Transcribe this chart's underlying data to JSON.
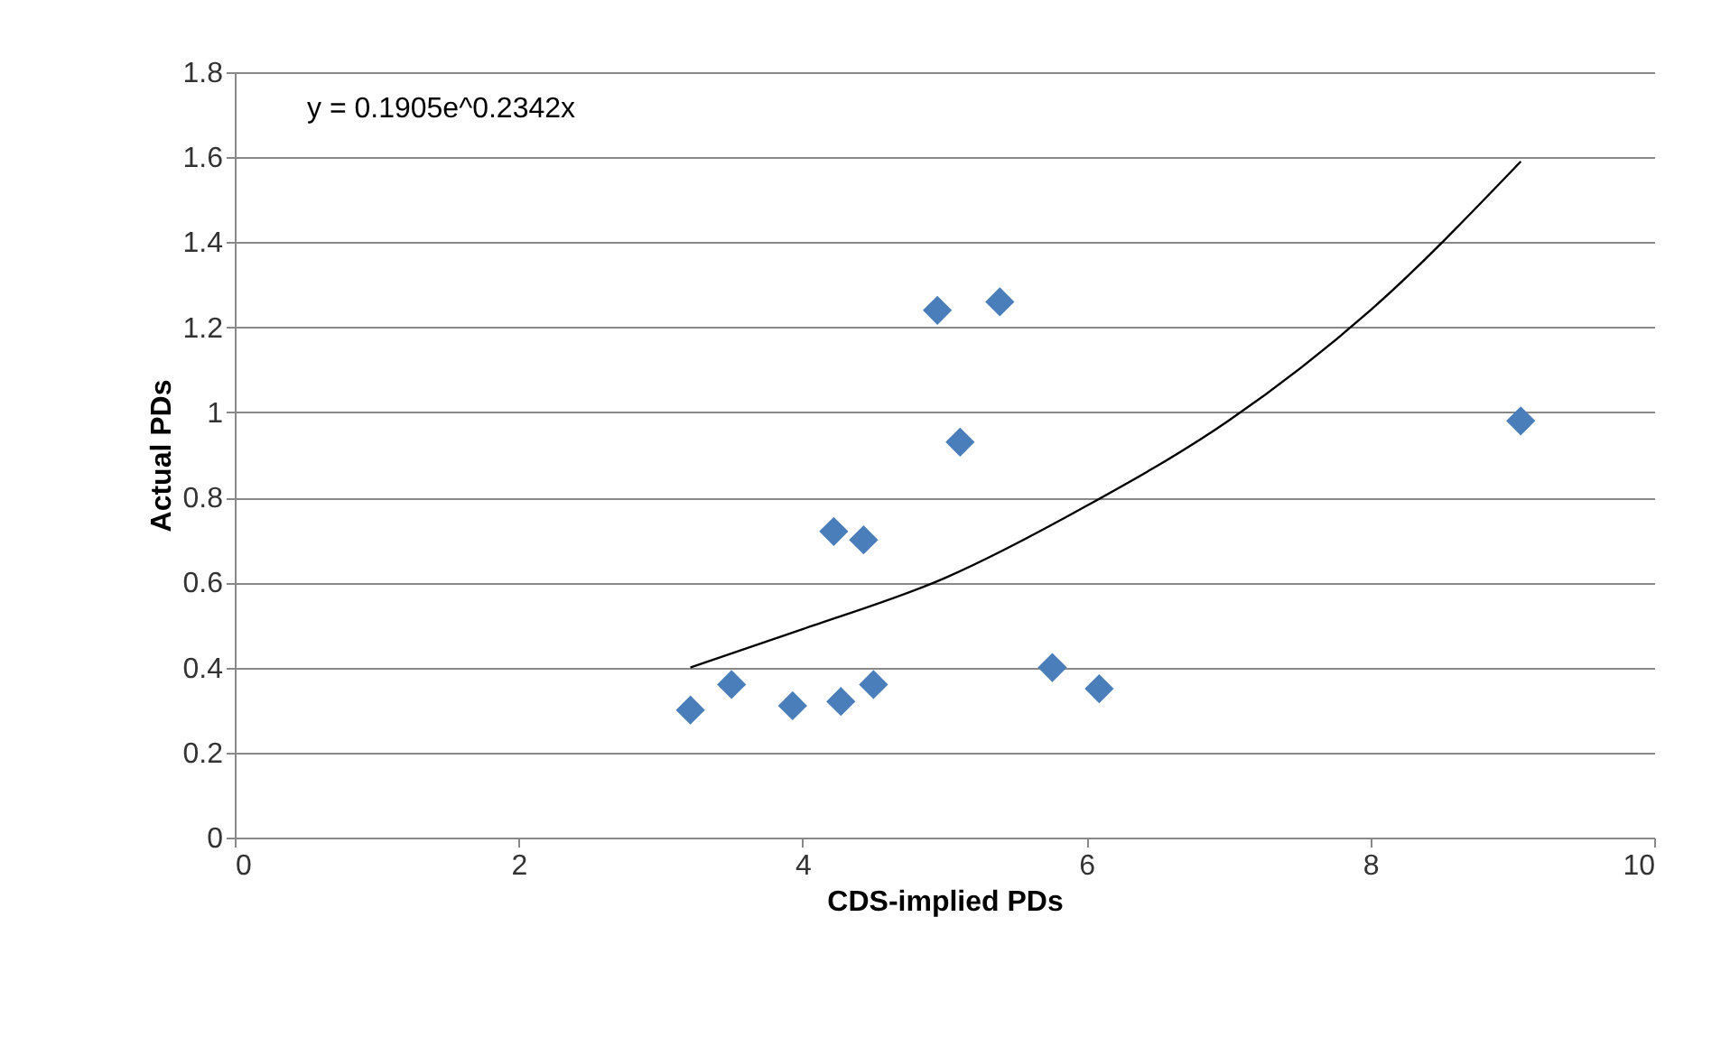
{
  "chart_data": {
    "type": "scatter",
    "xlabel": "CDS-implied PDs",
    "ylabel": "Actual PDs",
    "xlim": [
      0,
      10
    ],
    "xticks": [
      0,
      2,
      4,
      6,
      8,
      10
    ],
    "ylim": [
      0,
      1.8
    ],
    "yticks": [
      0,
      0.2,
      0.4,
      0.6,
      0.8,
      1,
      1.2,
      1.4,
      1.6,
      1.8
    ],
    "grid": "y",
    "annotations": [
      "y = 0.1905e^0.2342x"
    ],
    "series": [
      {
        "marker": "diamond",
        "color": "#4a7ebb",
        "x": [
          3.21,
          3.5,
          3.93,
          4.27,
          4.5,
          4.22,
          4.43,
          4.95,
          5.39,
          5.11,
          5.76,
          6.09,
          9.06
        ],
        "values": [
          0.3,
          0.36,
          0.31,
          0.32,
          0.36,
          0.72,
          0.7,
          1.24,
          1.26,
          0.93,
          0.4,
          0.35,
          0.98
        ]
      },
      {
        "type": "line",
        "color": "#000000",
        "line_style": "solid",
        "x": [
          3.21,
          4,
          5,
          6,
          7,
          8,
          9.06
        ],
        "values": [
          0.4,
          0.49,
          0.61,
          0.78,
          0.98,
          1.24,
          1.59
        ]
      }
    ]
  }
}
